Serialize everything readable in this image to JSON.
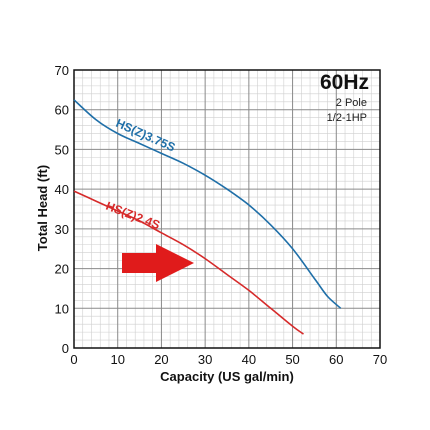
{
  "chart_data": {
    "type": "line",
    "title": "",
    "xlabel": "Capacity (US gal/min)",
    "ylabel": "Total Head (ft)",
    "xlim": [
      0,
      70
    ],
    "ylim": [
      0,
      70
    ],
    "x_ticks": [
      "0",
      "10",
      "20",
      "30",
      "40",
      "50",
      "60",
      "70"
    ],
    "y_ticks": [
      "0",
      "10",
      "20",
      "30",
      "40",
      "50",
      "60",
      "70"
    ],
    "grid": true,
    "annotations": {
      "frequency": "60Hz",
      "poles": "2 Pole",
      "power": "1/2-1HP"
    },
    "series": [
      {
        "name": "HS(Z)3.75S",
        "color": "#1f6fa8",
        "x": [
          0,
          5,
          10,
          15,
          20,
          25,
          30,
          35,
          40,
          45,
          50,
          55,
          58,
          61
        ],
        "y": [
          62.5,
          57.5,
          54,
          51.5,
          49,
          46.5,
          43.5,
          40,
          36,
          31,
          25,
          17.5,
          13,
          10
        ]
      },
      {
        "name": "HS(Z)2.4S",
        "color": "#d62a2a",
        "x": [
          0,
          5,
          10,
          15,
          20,
          25,
          30,
          35,
          40,
          45,
          50,
          52.5
        ],
        "y": [
          39.5,
          37,
          34.5,
          32,
          29,
          26,
          22.5,
          18.5,
          14.5,
          10,
          5.5,
          3.5
        ]
      }
    ]
  }
}
